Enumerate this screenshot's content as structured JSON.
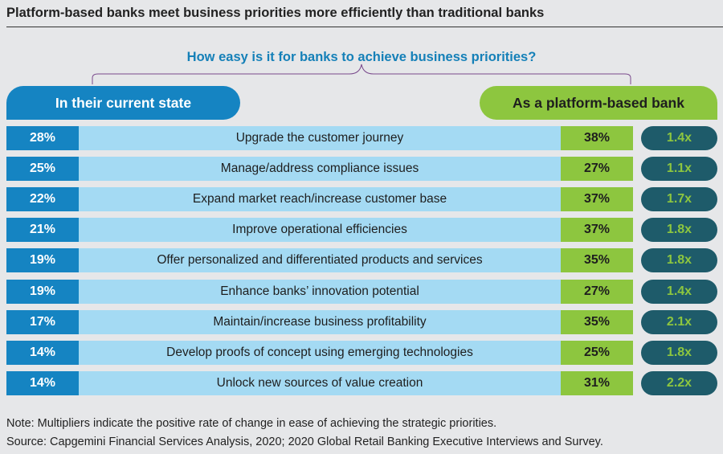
{
  "chart_data": {
    "type": "table",
    "title": "Platform-based banks meet business priorities more efficiently than traditional banks",
    "subtitle": "How easy is it for banks to achieve business priorities?",
    "columns": {
      "current": "In their current state",
      "platform": "As a platform-based bank"
    },
    "rows": [
      {
        "current": "28%",
        "priority": "Upgrade the customer journey",
        "platform": "38%",
        "multiplier": "1.4x"
      },
      {
        "current": "25%",
        "priority": "Manage/address compliance issues",
        "platform": "27%",
        "multiplier": "1.1x"
      },
      {
        "current": "22%",
        "priority": "Expand market reach/increase customer base",
        "platform": "37%",
        "multiplier": "1.7x"
      },
      {
        "current": "21%",
        "priority": "Improve operational efficiencies",
        "platform": "37%",
        "multiplier": "1.8x"
      },
      {
        "current": "19%",
        "priority": "Offer personalized and differentiated products and services",
        "platform": "35%",
        "multiplier": "1.8x"
      },
      {
        "current": "19%",
        "priority": "Enhance banks’ innovation potential",
        "platform": "27%",
        "multiplier": "1.4x"
      },
      {
        "current": "17%",
        "priority": "Maintain/increase business profitability",
        "platform": "35%",
        "multiplier": "2.1x"
      },
      {
        "current": "14%",
        "priority": "Develop proofs of concept using emerging technologies",
        "platform": "25%",
        "multiplier": "1.8x"
      },
      {
        "current": "14%",
        "priority": "Unlock new sources of value creation",
        "platform": "31%",
        "multiplier": "2.2x"
      }
    ],
    "colors": {
      "current": "#1584c2",
      "priority": "#a4daf3",
      "platform": "#8dc63f",
      "multiplier_bg": "#1e5b6a",
      "multiplier_text": "#8dc63f"
    }
  },
  "note": "Note: Multipliers indicate the positive rate of change in ease of achieving the strategic priorities.",
  "source": "Source: Capgemini Financial Services Analysis, 2020; 2020 Global Retail Banking Executive Interviews and Survey."
}
